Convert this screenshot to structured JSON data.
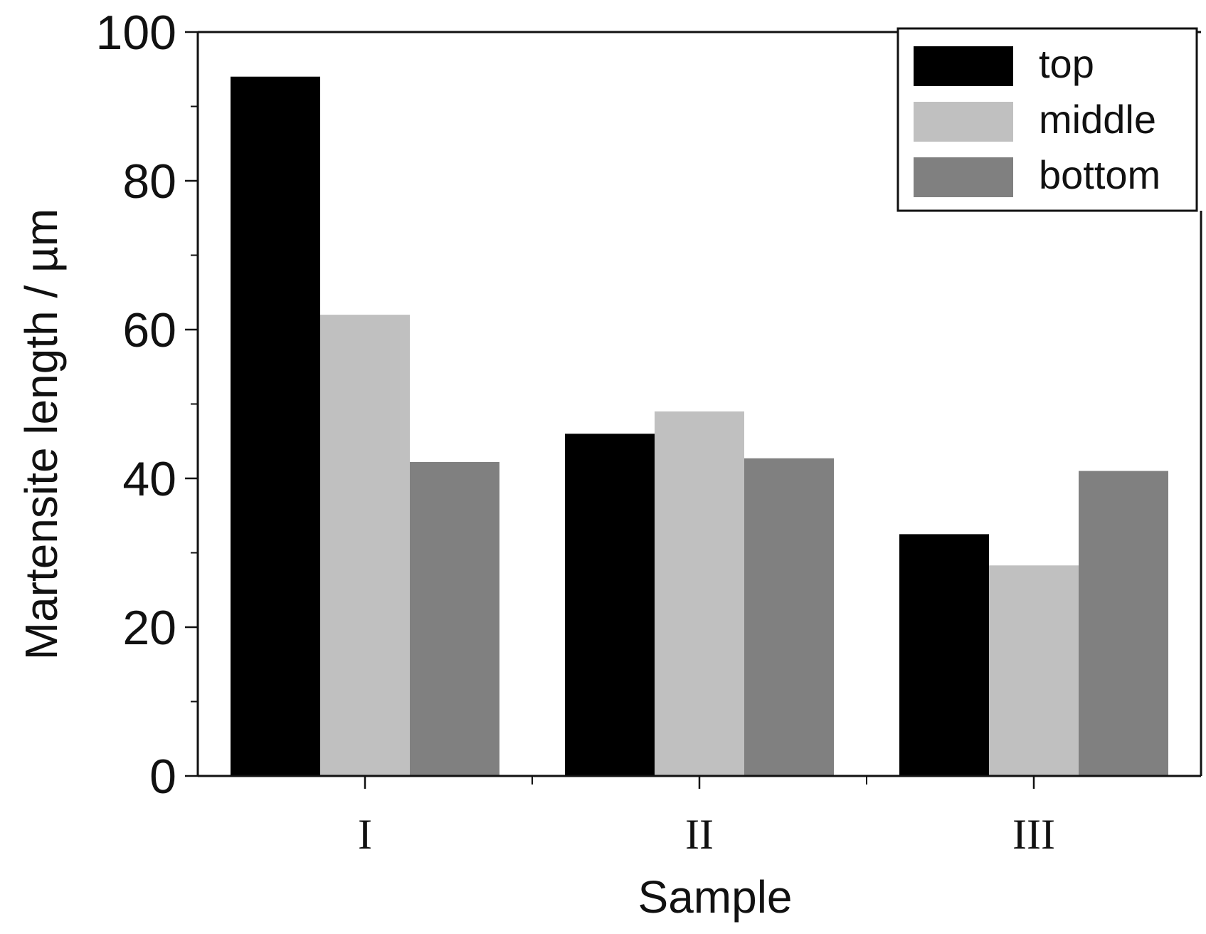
{
  "chart_data": {
    "type": "bar",
    "title": "",
    "xlabel": "Sample",
    "ylabel": "Martensite length / µm",
    "categories": [
      "I",
      "II",
      "III"
    ],
    "series": [
      {
        "name": "top",
        "values": [
          94,
          46,
          32.5
        ],
        "color": "#000000"
      },
      {
        "name": "middle",
        "values": [
          62,
          49,
          28.3
        ],
        "color": "#c0c0c0"
      },
      {
        "name": "bottom",
        "values": [
          42.2,
          42.7,
          41
        ],
        "color": "#808080"
      }
    ],
    "ylim": [
      0,
      100
    ],
    "yticks": [
      0,
      20,
      40,
      60,
      80,
      100
    ],
    "grid": false,
    "legend": "top-right"
  }
}
